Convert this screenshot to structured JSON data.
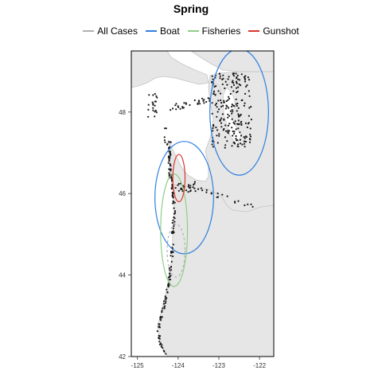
{
  "title": "Spring",
  "legend": [
    {
      "label": "All Cases",
      "color": "#b0b0b0"
    },
    {
      "label": "Boat",
      "color": "#2f7fe0"
    },
    {
      "label": "Fisheries",
      "color": "#8ecf8a"
    },
    {
      "label": "Gunshot",
      "color": "#d9342b"
    }
  ],
  "map_data": {
    "xlim": [
      -125.15,
      -121.65
    ],
    "ylim": [
      42,
      49.5
    ],
    "x_ticks": [
      -125,
      -124,
      -123,
      -122
    ],
    "y_ticks": [
      42,
      44,
      46,
      48
    ],
    "x_tick_labels": [
      "-125",
      "-124",
      "-123",
      "-122"
    ],
    "y_tick_labels": [
      "42",
      "44",
      "46",
      "48"
    ],
    "ellipses": [
      {
        "group": "Boat",
        "cx": -122.5,
        "cy": 48.0,
        "rx": 0.72,
        "ry": 1.55,
        "style": "solid"
      },
      {
        "group": "Boat",
        "cx": -123.85,
        "cy": 45.9,
        "rx": 0.72,
        "ry": 1.38,
        "style": "solid"
      },
      {
        "group": "Fisheries",
        "cx": -124.1,
        "cy": 45.1,
        "rx": 0.33,
        "ry": 1.38,
        "style": "solid"
      },
      {
        "group": "Gunshot",
        "cx": -123.98,
        "cy": 46.38,
        "rx": 0.15,
        "ry": 0.58,
        "style": "solid"
      },
      {
        "group": "All Cases",
        "cx": -124.05,
        "cy": 44.6,
        "rx": 0.22,
        "ry": 0.65,
        "style": "dashed"
      }
    ]
  }
}
